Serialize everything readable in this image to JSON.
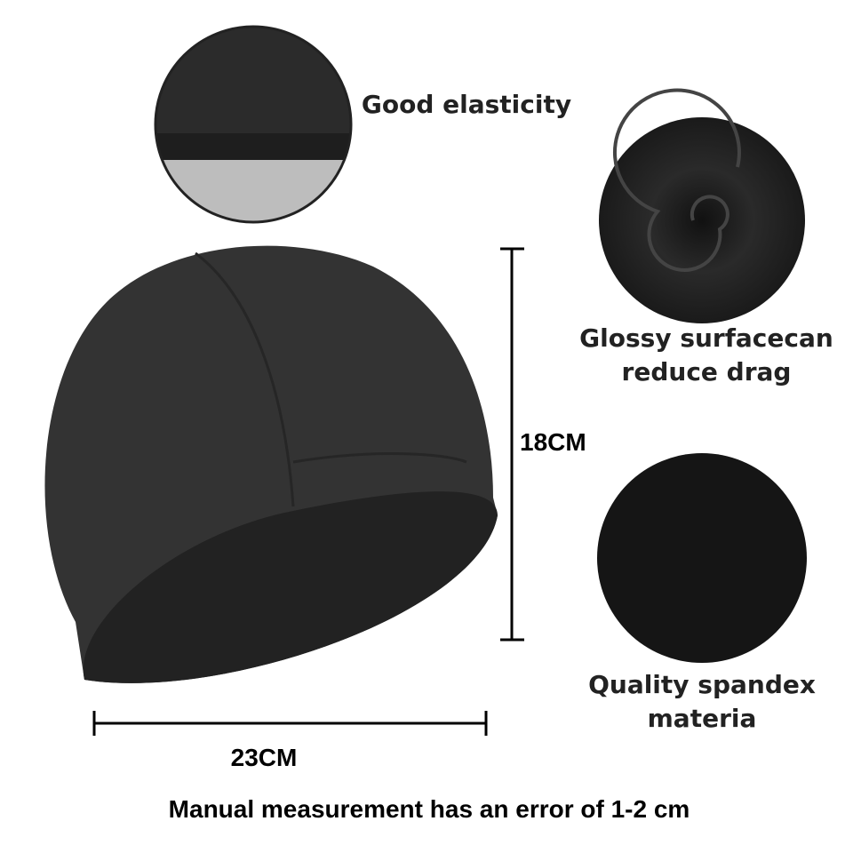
{
  "features": [
    {
      "label": "Good elasticity"
    },
    {
      "label": "Glossy surfacecan\nreduce drag"
    },
    {
      "label": "Quality spandex\nmateria"
    }
  ],
  "dimensions": {
    "height": "18CM",
    "width": "23CM"
  },
  "note": "Manual measurement has an error of 1-2 cm"
}
